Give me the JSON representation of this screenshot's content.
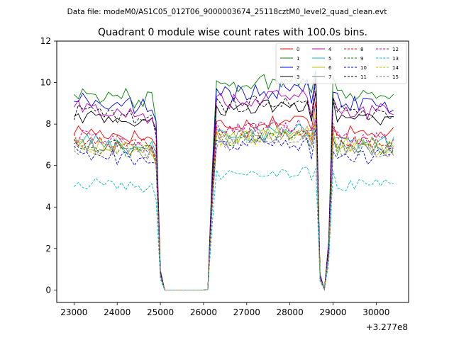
{
  "suptitle": "Data file: modeM0/AS1C05_012T06_9000003674_25118cztM0_level2_quad_clean.evt",
  "chart_data": {
    "type": "line",
    "title": "Quadrant 0 module wise count rates with 100.0s bins.",
    "xlabel": "",
    "ylabel": "",
    "x_offset_label": "+3.277e8",
    "xlim": [
      22600,
      30750
    ],
    "ylim": [
      -0.6,
      12.0
    ],
    "xticks": [
      23000,
      24000,
      25000,
      26000,
      27000,
      28000,
      29000,
      30000
    ],
    "yticks": [
      0,
      2,
      4,
      6,
      8,
      10,
      12
    ],
    "xtick_labels": [
      "23000",
      "24000",
      "25000",
      "26000",
      "27000",
      "28000",
      "29000",
      "30000"
    ],
    "ytick_labels": [
      "0",
      "2",
      "4",
      "6",
      "8",
      "10",
      "12"
    ],
    "legend_position": "top-right",
    "x_start": 23000,
    "x_step": 100,
    "profile_note": "Every series shares the same gap structure: counts drop to ~0 between 25000 and 26100 and dip near 28800-28900.",
    "series": [
      {
        "name": "0",
        "color": "#ff0000",
        "dash": "solid",
        "base": 7.7,
        "amp": 0.35
      },
      {
        "name": "1",
        "color": "#008000",
        "dash": "solid",
        "base": 9.6,
        "amp": 0.45
      },
      {
        "name": "2",
        "color": "#0000ff",
        "dash": "solid",
        "base": 9.2,
        "amp": 0.45
      },
      {
        "name": "3",
        "color": "#000000",
        "dash": "solid",
        "base": 8.4,
        "amp": 0.35
      },
      {
        "name": "4",
        "color": "#c000c0",
        "dash": "solid",
        "base": 8.8,
        "amp": 0.4
      },
      {
        "name": "5",
        "color": "#00bfbf",
        "dash": "solid",
        "base": 7.2,
        "amp": 0.4
      },
      {
        "name": "6",
        "color": "#bfbf00",
        "dash": "solid",
        "base": 7.1,
        "amp": 0.4
      },
      {
        "name": "7",
        "color": "#808080",
        "dash": "solid",
        "base": 7.0,
        "amp": 0.4
      },
      {
        "name": "8",
        "color": "#ff0000",
        "dash": "dashed",
        "base": 7.3,
        "amp": 0.4
      },
      {
        "name": "9",
        "color": "#008000",
        "dash": "dashed",
        "base": 7.0,
        "amp": 0.4
      },
      {
        "name": "10",
        "color": "#0000ff",
        "dash": "dashed",
        "base": 6.6,
        "amp": 0.4
      },
      {
        "name": "11",
        "color": "#000000",
        "dash": "dashed",
        "base": 8.6,
        "amp": 0.4
      },
      {
        "name": "12",
        "color": "#c000c0",
        "dash": "dashed",
        "base": 7.4,
        "amp": 0.4
      },
      {
        "name": "13",
        "color": "#00bfbf",
        "dash": "dashed",
        "base": 5.2,
        "amp": 0.3
      },
      {
        "name": "14",
        "color": "#bfbf00",
        "dash": "dashed",
        "base": 7.0,
        "amp": 0.4
      },
      {
        "name": "15",
        "color": "#808080",
        "dash": "dashed",
        "base": 6.9,
        "amp": 0.4
      }
    ]
  }
}
